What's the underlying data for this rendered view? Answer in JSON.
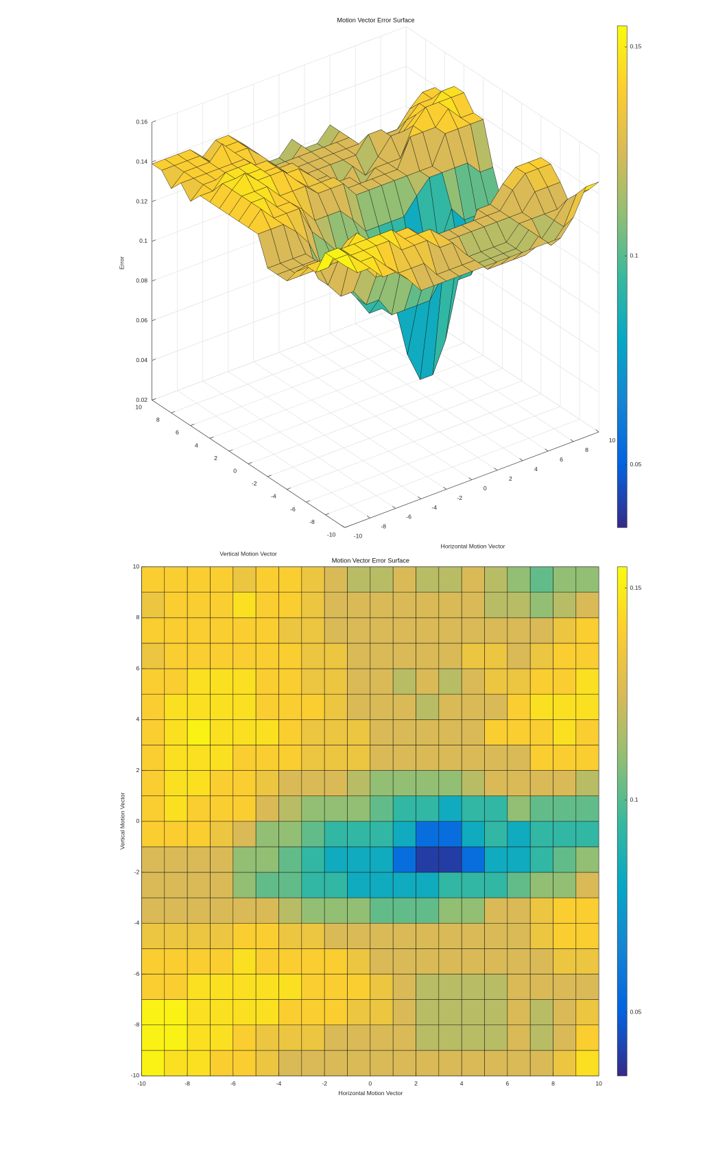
{
  "chart_data": [
    {
      "type": "surface",
      "title": "Motion Vector Error Surface",
      "xlabel": "Horizontal Motion Vector",
      "ylabel": "Vertical Motion Vector",
      "zlabel": "Error",
      "x": [
        -10,
        -9,
        -8,
        -7,
        -6,
        -5,
        -4,
        -3,
        -2,
        -1,
        0,
        1,
        2,
        3,
        4,
        5,
        6,
        7,
        8,
        9,
        10
      ],
      "y": [
        -10,
        -9,
        -8,
        -7,
        -6,
        -5,
        -4,
        -3,
        -2,
        -1,
        0,
        1,
        2,
        3,
        4,
        5,
        6,
        7,
        8,
        9,
        10
      ],
      "z": [
        [
          0.152,
          0.146,
          0.146,
          0.139,
          0.139,
          0.133,
          0.125,
          0.125,
          0.125,
          0.125,
          0.125,
          0.125,
          0.125,
          0.125,
          0.125,
          0.125,
          0.125,
          0.125,
          0.133,
          0.146,
          0.146
        ],
        [
          0.152,
          0.152,
          0.146,
          0.146,
          0.139,
          0.133,
          0.133,
          0.133,
          0.125,
          0.125,
          0.125,
          0.125,
          0.118,
          0.118,
          0.118,
          0.118,
          0.125,
          0.118,
          0.125,
          0.139,
          0.139
        ],
        [
          0.152,
          0.152,
          0.146,
          0.146,
          0.146,
          0.146,
          0.139,
          0.139,
          0.139,
          0.133,
          0.133,
          0.125,
          0.118,
          0.118,
          0.118,
          0.118,
          0.125,
          0.118,
          0.125,
          0.133,
          0.133
        ],
        [
          0.139,
          0.139,
          0.146,
          0.146,
          0.146,
          0.146,
          0.146,
          0.139,
          0.139,
          0.139,
          0.133,
          0.125,
          0.118,
          0.118,
          0.118,
          0.118,
          0.125,
          0.125,
          0.125,
          0.125,
          0.125
        ],
        [
          0.139,
          0.139,
          0.139,
          0.139,
          0.146,
          0.139,
          0.139,
          0.139,
          0.139,
          0.133,
          0.125,
          0.125,
          0.125,
          0.125,
          0.125,
          0.125,
          0.125,
          0.125,
          0.133,
          0.133,
          0.133
        ],
        [
          0.133,
          0.133,
          0.133,
          0.133,
          0.139,
          0.139,
          0.133,
          0.133,
          0.125,
          0.125,
          0.125,
          0.125,
          0.125,
          0.125,
          0.125,
          0.125,
          0.125,
          0.133,
          0.139,
          0.139,
          0.139
        ],
        [
          0.125,
          0.125,
          0.125,
          0.125,
          0.125,
          0.125,
          0.118,
          0.11,
          0.11,
          0.11,
          0.102,
          0.102,
          0.102,
          0.11,
          0.11,
          0.125,
          0.125,
          0.133,
          0.139,
          0.139,
          0.139
        ],
        [
          0.125,
          0.125,
          0.125,
          0.125,
          0.11,
          0.102,
          0.102,
          0.093,
          0.093,
          0.083,
          0.083,
          0.083,
          0.083,
          0.093,
          0.093,
          0.093,
          0.102,
          0.11,
          0.11,
          0.125,
          0.125
        ],
        [
          0.125,
          0.125,
          0.125,
          0.125,
          0.11,
          0.11,
          0.102,
          0.093,
          0.083,
          0.083,
          0.083,
          0.055,
          0.04,
          0.04,
          0.055,
          0.083,
          0.083,
          0.093,
          0.102,
          0.11,
          0.11
        ],
        [
          0.139,
          0.139,
          0.139,
          0.133,
          0.125,
          0.11,
          0.11,
          0.102,
          0.093,
          0.093,
          0.093,
          0.083,
          0.055,
          0.055,
          0.083,
          0.093,
          0.083,
          0.093,
          0.093,
          0.093,
          0.093
        ],
        [
          0.139,
          0.146,
          0.139,
          0.139,
          0.139,
          0.125,
          0.118,
          0.11,
          0.11,
          0.11,
          0.102,
          0.093,
          0.093,
          0.083,
          0.093,
          0.093,
          0.11,
          0.102,
          0.102,
          0.102,
          0.102
        ],
        [
          0.139,
          0.146,
          0.146,
          0.139,
          0.139,
          0.133,
          0.125,
          0.125,
          0.125,
          0.118,
          0.11,
          0.11,
          0.11,
          0.11,
          0.118,
          0.125,
          0.125,
          0.125,
          0.125,
          0.118,
          0.118
        ],
        [
          0.139,
          0.146,
          0.146,
          0.146,
          0.139,
          0.139,
          0.139,
          0.133,
          0.133,
          0.133,
          0.125,
          0.125,
          0.125,
          0.125,
          0.125,
          0.125,
          0.125,
          0.139,
          0.139,
          0.139,
          0.139
        ],
        [
          0.139,
          0.146,
          0.152,
          0.146,
          0.146,
          0.146,
          0.139,
          0.133,
          0.133,
          0.133,
          0.125,
          0.125,
          0.125,
          0.125,
          0.125,
          0.139,
          0.139,
          0.139,
          0.146,
          0.139,
          0.139
        ],
        [
          0.139,
          0.146,
          0.146,
          0.146,
          0.146,
          0.139,
          0.139,
          0.139,
          0.133,
          0.125,
          0.125,
          0.125,
          0.118,
          0.125,
          0.125,
          0.125,
          0.139,
          0.146,
          0.146,
          0.146,
          0.146
        ],
        [
          0.139,
          0.139,
          0.146,
          0.146,
          0.146,
          0.139,
          0.139,
          0.133,
          0.133,
          0.125,
          0.125,
          0.118,
          0.125,
          0.118,
          0.125,
          0.133,
          0.133,
          0.139,
          0.139,
          0.146,
          0.146
        ],
        [
          0.133,
          0.139,
          0.139,
          0.139,
          0.139,
          0.139,
          0.139,
          0.133,
          0.133,
          0.125,
          0.125,
          0.125,
          0.125,
          0.125,
          0.133,
          0.133,
          0.125,
          0.133,
          0.139,
          0.139,
          0.139
        ],
        [
          0.139,
          0.139,
          0.139,
          0.139,
          0.139,
          0.139,
          0.133,
          0.133,
          0.125,
          0.125,
          0.125,
          0.125,
          0.125,
          0.125,
          0.125,
          0.125,
          0.125,
          0.125,
          0.133,
          0.139,
          0.139
        ],
        [
          0.133,
          0.139,
          0.139,
          0.139,
          0.146,
          0.139,
          0.139,
          0.133,
          0.125,
          0.125,
          0.125,
          0.125,
          0.125,
          0.125,
          0.125,
          0.118,
          0.118,
          0.11,
          0.118,
          0.125,
          0.125
        ],
        [
          0.139,
          0.139,
          0.139,
          0.139,
          0.133,
          0.139,
          0.139,
          0.133,
          0.125,
          0.118,
          0.118,
          0.125,
          0.118,
          0.118,
          0.125,
          0.118,
          0.11,
          0.102,
          0.11,
          0.11,
          0.11
        ],
        [
          0.139,
          0.139,
          0.139,
          0.139,
          0.133,
          0.139,
          0.139,
          0.133,
          0.125,
          0.118,
          0.118,
          0.125,
          0.118,
          0.118,
          0.125,
          0.118,
          0.11,
          0.102,
          0.11,
          0.11,
          0.11
        ]
      ],
      "xlim": [
        -10,
        10
      ],
      "ylim": [
        -10,
        10
      ],
      "zlim": [
        0.02,
        0.16
      ],
      "xticks": [
        -10,
        -8,
        -6,
        -4,
        -2,
        0,
        2,
        4,
        6,
        8,
        10
      ],
      "yticks": [
        -10,
        -8,
        -6,
        -4,
        -2,
        0,
        2,
        4,
        6,
        8,
        10
      ],
      "zticks": [
        0.02,
        0.04,
        0.06,
        0.08,
        0.1,
        0.12,
        0.14,
        0.16
      ],
      "clim": [
        0.035,
        0.155
      ],
      "colorbar_ticks": [
        0.05,
        0.1,
        0.15
      ],
      "colormap": [
        "#352a87",
        "#0363e1",
        "#1485d4",
        "#06a7c6",
        "#38b99e",
        "#92bf73",
        "#d9ba56",
        "#fcce2e",
        "#f9fb0e"
      ],
      "grid": true
    },
    {
      "type": "heatmap",
      "title": "Motion Vector Error Surface",
      "xlabel": "Horizontal Motion Vector",
      "ylabel": "Vertical Motion Vector",
      "xlim": [
        -10,
        10
      ],
      "ylim": [
        -10,
        10
      ],
      "xticks": [
        -10,
        -8,
        -6,
        -4,
        -2,
        0,
        2,
        4,
        6,
        8,
        10
      ],
      "yticks": [
        -10,
        -8,
        -6,
        -4,
        -2,
        0,
        2,
        4,
        6,
        8,
        10
      ],
      "clim": [
        0.035,
        0.155
      ],
      "colorbar_ticks": [
        0.05,
        0.1,
        0.15
      ],
      "colormap": [
        "#352a87",
        "#0363e1",
        "#1485d4",
        "#06a7c6",
        "#38b99e",
        "#92bf73",
        "#d9ba56",
        "#fcce2e",
        "#f9fb0e"
      ]
    }
  ]
}
